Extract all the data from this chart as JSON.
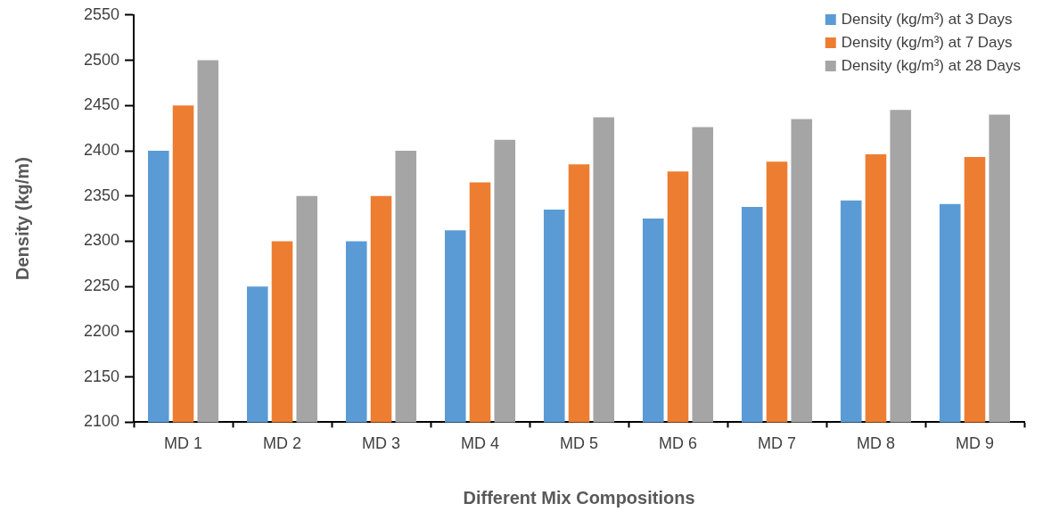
{
  "chart_data": {
    "type": "bar",
    "xlabel": "Different Mix Compositions",
    "ylabel": "Density (kg/m)",
    "categories": [
      "MD 1",
      "MD 2",
      "MD 3",
      "MD 4",
      "MD 5",
      "MD 6",
      "MD 7",
      "MD 8",
      "MD 9"
    ],
    "series": [
      {
        "name": "Density (kg/m³) at 3 Days",
        "color": "#5b9bd5",
        "values": [
          2400,
          2250,
          2300,
          2312,
          2335,
          2325,
          2338,
          2345,
          2341
        ]
      },
      {
        "name": "Density (kg/m³) at 7 Days",
        "color": "#ed7d31",
        "values": [
          2450,
          2300,
          2350,
          2365,
          2385,
          2377,
          2388,
          2396,
          2393
        ]
      },
      {
        "name": "Density (kg/m³) at 28 Days",
        "color": "#a5a5a5",
        "values": [
          2500,
          2350,
          2400,
          2412,
          2437,
          2426,
          2435,
          2445,
          2440
        ]
      }
    ],
    "ylim": [
      2100,
      2550
    ],
    "yticks": [
      2100,
      2150,
      2200,
      2250,
      2300,
      2350,
      2400,
      2450,
      2500,
      2550
    ],
    "grid": false,
    "legend": "top right"
  }
}
